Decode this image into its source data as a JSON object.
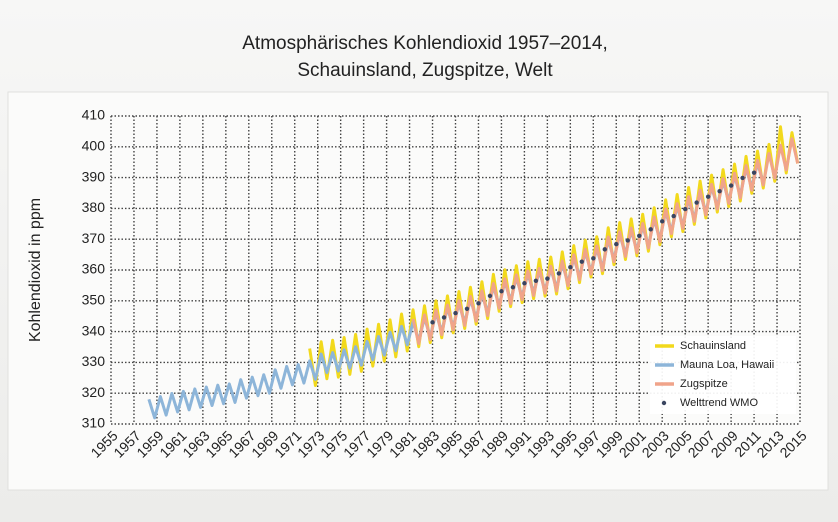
{
  "chart_data": {
    "type": "line",
    "title": "Atmosphärisches Kohlendioxid 1957–2014,",
    "subtitle": "Schauinsland, Zugspitze, Welt",
    "y_label": "Kohlendioxid in ppm",
    "xlim": [
      1955,
      2015
    ],
    "xticks": [
      1955,
      1957,
      1959,
      1961,
      1963,
      1965,
      1967,
      1969,
      1971,
      1973,
      1975,
      1977,
      1979,
      1981,
      1983,
      1985,
      1987,
      1989,
      1991,
      1993,
      1995,
      1997,
      1999,
      2001,
      2003,
      2005,
      2007,
      2009,
      2011,
      2013,
      2015
    ],
    "ylim": [
      310,
      410
    ],
    "yticks": [
      310,
      320,
      330,
      340,
      350,
      360,
      370,
      380,
      390,
      400,
      410
    ],
    "grid": true,
    "legend": "lower right",
    "series": [
      {
        "name": "Schauinsland",
        "color": "#f2d91c",
        "marker": "none",
        "x": [
          1972.3,
          1972.8,
          1973.3,
          1973.8,
          1974.3,
          1974.8,
          1975.3,
          1975.8,
          1976.3,
          1976.8,
          1977.3,
          1977.8,
          1978.3,
          1978.8,
          1979.3,
          1979.8,
          1980.3,
          1980.8,
          1981.3,
          1981.8,
          1982.3,
          1982.8,
          1983.3,
          1983.8,
          1984.3,
          1984.8,
          1985.3,
          1985.8,
          1986.3,
          1986.8,
          1987.3,
          1987.8,
          1988.3,
          1988.8,
          1989.3,
          1989.8,
          1990.3,
          1990.8,
          1991.3,
          1991.8,
          1992.3,
          1992.8,
          1993.3,
          1993.8,
          1994.3,
          1994.8,
          1995.3,
          1995.8,
          1996.3,
          1996.8,
          1997.3,
          1997.8,
          1998.3,
          1998.8,
          1999.3,
          1999.8,
          2000.3,
          2000.8,
          2001.3,
          2001.8,
          2002.3,
          2002.8,
          2003.3,
          2003.8,
          2004.3,
          2004.8,
          2005.3,
          2005.8,
          2006.3,
          2006.8,
          2007.3,
          2007.8,
          2008.3,
          2008.8,
          2009.3,
          2009.8,
          2010.3,
          2010.8,
          2011.3,
          2011.8,
          2012.3,
          2012.8,
          2013.3,
          2013.8,
          2014.3,
          2014.8
        ],
        "values": [
          334.5,
          322.5,
          336.7,
          324.7,
          337.2,
          325.2,
          338.1,
          326.1,
          339.1,
          327.1,
          340.8,
          328.8,
          342.4,
          330.4,
          343.8,
          331.8,
          345.7,
          333.7,
          347.1,
          335.1,
          348.4,
          336.4,
          350.0,
          338.0,
          351.6,
          339.6,
          353.0,
          341.0,
          354.4,
          342.4,
          356.2,
          344.2,
          358.6,
          346.6,
          360.1,
          348.1,
          361.4,
          349.4,
          362.7,
          350.7,
          363.5,
          351.5,
          364.2,
          352.2,
          365.9,
          353.9,
          367.9,
          355.9,
          369.7,
          357.7,
          370.8,
          358.8,
          373.7,
          361.7,
          375.4,
          363.4,
          376.6,
          364.6,
          378.1,
          366.1,
          380.2,
          368.2,
          382.8,
          370.8,
          384.5,
          372.5,
          386.8,
          374.8,
          388.9,
          376.9,
          390.8,
          378.8,
          392.6,
          380.6,
          394.4,
          382.4,
          396.9,
          384.9,
          398.6,
          386.6,
          400.8,
          388.8,
          406.5,
          391.5,
          404.6,
          394.6
        ]
      },
      {
        "name": "Mauna Loa, Hawaii",
        "color": "#8db5d9",
        "marker": "none",
        "x": [
          1958.3,
          1958.8,
          1959.3,
          1959.8,
          1960.3,
          1960.8,
          1961.3,
          1961.8,
          1962.3,
          1962.8,
          1963.3,
          1963.8,
          1964.3,
          1964.8,
          1965.3,
          1965.8,
          1966.3,
          1966.8,
          1967.3,
          1967.8,
          1968.3,
          1968.8,
          1969.3,
          1969.8,
          1970.3,
          1970.8,
          1971.3,
          1971.8,
          1972.3,
          1972.8,
          1973.3,
          1973.8,
          1974.3,
          1974.8,
          1975.3,
          1975.8,
          1976.3,
          1976.8,
          1977.3,
          1977.8,
          1978.3,
          1978.8,
          1979.3,
          1979.8,
          1980.3,
          1980.8,
          1981.3,
          1981.8,
          1982.3,
          1982.8,
          1983.3,
          1983.8,
          1984.3,
          1984.8,
          1985.3,
          1985.8,
          1986.3,
          1986.8,
          1987.3,
          1987.8,
          1988.3,
          1988.8,
          1989.3,
          1989.8,
          1990.3,
          1990.8,
          1991.3,
          1991.8,
          1992.3,
          1992.8,
          1993.3,
          1993.8,
          1994.3,
          1994.8,
          1995.3,
          1995.8,
          1996.3,
          1996.8,
          1997.3,
          1997.8,
          1998.3,
          1998.8,
          1999.3,
          1999.8,
          2000.3,
          2000.8,
          2001.3,
          2001.8,
          2002.3,
          2002.8,
          2003.3,
          2003.8,
          2004.3,
          2004.8,
          2005.3,
          2005.8,
          2006.3,
          2006.8,
          2007.3,
          2007.8,
          2008.3,
          2008.8,
          2009.3,
          2009.8,
          2010.3,
          2010.8,
          2011.3,
          2011.8
        ],
        "values": [
          318.0,
          312.0,
          318.9,
          312.9,
          319.9,
          313.9,
          320.6,
          314.6,
          321.4,
          315.4,
          322.0,
          316.0,
          322.6,
          316.6,
          323.0,
          317.0,
          324.4,
          318.4,
          325.2,
          319.2,
          326.0,
          320.0,
          327.6,
          321.6,
          328.7,
          322.7,
          329.3,
          323.3,
          330.5,
          324.5,
          332.7,
          326.7,
          333.2,
          327.2,
          334.1,
          328.1,
          335.1,
          329.1,
          336.8,
          330.8,
          338.4,
          332.4,
          339.8,
          333.8,
          341.7,
          335.7,
          343.1,
          337.1,
          344.4,
          338.4,
          346.0,
          340.0,
          347.6,
          341.6,
          349.0,
          343.0,
          350.4,
          344.4,
          352.2,
          346.2,
          354.6,
          348.6,
          356.1,
          350.1,
          357.4,
          351.4,
          358.7,
          352.7,
          359.5,
          353.5,
          360.2,
          354.2,
          361.9,
          355.9,
          363.9,
          357.9,
          365.7,
          359.7,
          366.8,
          360.8,
          369.7,
          363.7,
          371.4,
          365.4,
          372.6,
          366.6,
          374.1,
          368.1,
          376.2,
          370.2,
          378.8,
          372.8,
          380.5,
          374.5,
          382.8,
          376.8,
          384.9,
          378.9,
          386.8,
          380.8,
          388.6,
          382.6,
          390.4,
          384.4,
          392.9,
          386.9,
          394.6,
          388.6
        ]
      },
      {
        "name": "Zugspitze",
        "color": "#f0a48a",
        "marker": "none",
        "x": [
          1981.3,
          1981.8,
          1982.3,
          1982.8,
          1983.3,
          1983.8,
          1984.3,
          1984.8,
          1985.3,
          1985.8,
          1986.3,
          1986.8,
          1987.3,
          1987.8,
          1988.3,
          1988.8,
          1989.3,
          1989.8,
          1990.3,
          1990.8,
          1991.3,
          1991.8,
          1992.3,
          1992.8,
          1993.3,
          1993.8,
          1994.3,
          1994.8,
          1995.3,
          1995.8,
          1996.3,
          1996.8,
          1997.3,
          1997.8,
          1998.3,
          1998.8,
          1999.3,
          1999.8,
          2000.3,
          2000.8,
          2001.3,
          2001.8,
          2002.3,
          2002.8,
          2003.3,
          2003.8,
          2004.3,
          2004.8,
          2005.3,
          2005.8,
          2006.3,
          2006.8,
          2007.3,
          2007.8,
          2008.3,
          2008.8,
          2009.3,
          2009.8,
          2010.3,
          2010.8,
          2011.3,
          2011.8,
          2012.3,
          2012.8,
          2013.3,
          2013.8,
          2014.3,
          2014.8
        ],
        "values": [
          344.1,
          336.1,
          345.4,
          337.4,
          347.0,
          339.0,
          348.6,
          340.6,
          350.0,
          342.0,
          351.4,
          343.4,
          353.2,
          345.2,
          355.6,
          347.6,
          357.1,
          349.1,
          358.4,
          350.4,
          359.7,
          351.7,
          360.5,
          352.5,
          361.2,
          353.2,
          362.9,
          354.9,
          364.9,
          356.9,
          366.7,
          358.7,
          367.8,
          359.8,
          370.7,
          362.7,
          372.4,
          364.4,
          373.6,
          365.6,
          375.1,
          367.1,
          377.2,
          369.2,
          379.8,
          371.8,
          381.5,
          373.5,
          383.8,
          375.8,
          385.9,
          377.9,
          387.8,
          379.8,
          389.6,
          381.6,
          391.4,
          383.4,
          393.9,
          385.9,
          395.6,
          387.6,
          397.8,
          389.8,
          400.5,
          392.5,
          402.6,
          394.6
        ]
      },
      {
        "name": "Welttrend WMO",
        "color": "#3a4560",
        "marker": "dot",
        "x": [
          1983,
          1984,
          1985,
          1986,
          1987,
          1988,
          1989,
          1990,
          1991,
          1992,
          1993,
          1994,
          1995,
          1996,
          1997,
          1998,
          1999,
          2000,
          2001,
          2002,
          2003,
          2004,
          2005,
          2006,
          2007,
          2008,
          2009,
          2010,
          2011
        ],
        "values": [
          343.0,
          344.6,
          346.0,
          347.4,
          349.2,
          351.6,
          353.1,
          354.4,
          355.7,
          356.5,
          357.2,
          358.9,
          360.9,
          362.7,
          363.8,
          366.7,
          368.4,
          369.6,
          371.1,
          373.2,
          375.8,
          377.5,
          379.8,
          381.9,
          383.8,
          385.6,
          387.4,
          389.9,
          391.6
        ]
      }
    ]
  }
}
